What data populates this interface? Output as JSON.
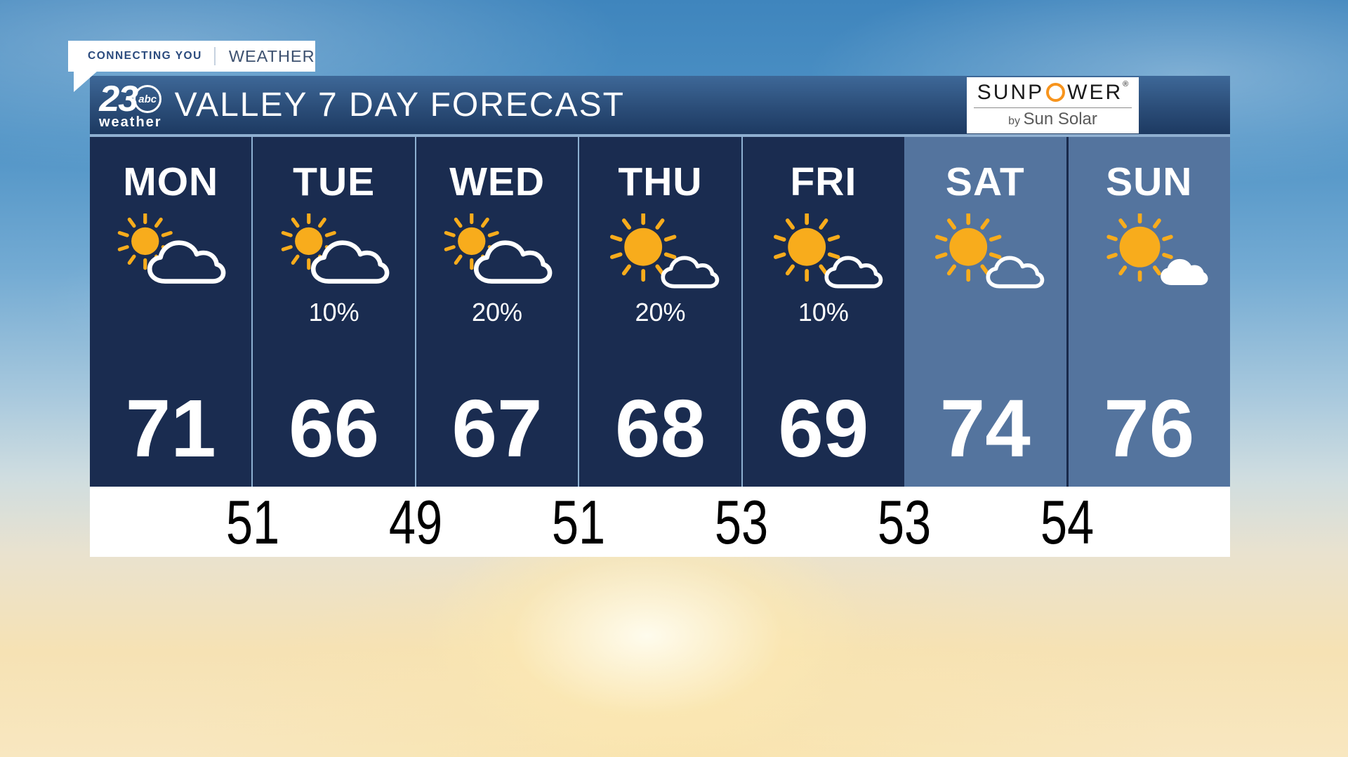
{
  "badge": {
    "left": "CONNECTING YOU",
    "right": "WEATHER"
  },
  "header": {
    "station_number": "23",
    "network": "abc",
    "station_sub": "weather",
    "title": "VALLEY 7 DAY FORECAST",
    "sponsor": {
      "name_pre": "SUNP",
      "name_post": "WER",
      "reg": "®",
      "byline_prefix": "by",
      "byline": "Sun Solar"
    }
  },
  "forecast": {
    "days": [
      {
        "label": "MON",
        "icon": "partly-cloudy",
        "precip": "",
        "high": "71",
        "weekend": false,
        "divider": "none"
      },
      {
        "label": "TUE",
        "icon": "partly-cloudy",
        "precip": "10%",
        "high": "66",
        "weekend": false,
        "divider": "light"
      },
      {
        "label": "WED",
        "icon": "partly-cloudy",
        "precip": "20%",
        "high": "67",
        "weekend": false,
        "divider": "light"
      },
      {
        "label": "THU",
        "icon": "mostly-sunny",
        "precip": "20%",
        "high": "68",
        "weekend": false,
        "divider": "light"
      },
      {
        "label": "FRI",
        "icon": "mostly-sunny",
        "precip": "10%",
        "high": "69",
        "weekend": false,
        "divider": "light"
      },
      {
        "label": "SAT",
        "icon": "mostly-sunny",
        "precip": "",
        "high": "74",
        "weekend": true,
        "divider": "none"
      },
      {
        "label": "SUN",
        "icon": "sunny-with-cloud",
        "precip": "",
        "high": "76",
        "weekend": true,
        "divider": "dark"
      }
    ],
    "lows": [
      "51",
      "49",
      "51",
      "53",
      "53",
      "54"
    ]
  },
  "chart_data": {
    "type": "table",
    "title": "VALLEY 7 DAY FORECAST",
    "columns": [
      "MON",
      "TUE",
      "WED",
      "THU",
      "FRI",
      "SAT",
      "SUN"
    ],
    "high_temps": [
      71,
      66,
      67,
      68,
      69,
      74,
      76
    ],
    "low_temps": [
      51,
      49,
      51,
      53,
      53,
      54
    ],
    "precip_chance": [
      "",
      "10%",
      "20%",
      "20%",
      "10%",
      "",
      ""
    ],
    "conditions": [
      "partly-cloudy",
      "partly-cloudy",
      "partly-cloudy",
      "mostly-sunny",
      "mostly-sunny",
      "mostly-sunny",
      "sunny-with-cloud"
    ],
    "notes": "low temps displayed on white strip between day columns"
  },
  "colors": {
    "weekday_bg": "#1a2c50",
    "weekend_bg": "#54749e",
    "header_top": "#3e6898",
    "header_bottom": "#1d3a62",
    "sun": "#F8AC1C",
    "cloud_outline": "#ffffff",
    "sunpower_orange": "#F7941D",
    "badge_navy": "#2a4a7d",
    "badge_gray_blue": "#3d5170",
    "low_temp_text": "#000000"
  }
}
